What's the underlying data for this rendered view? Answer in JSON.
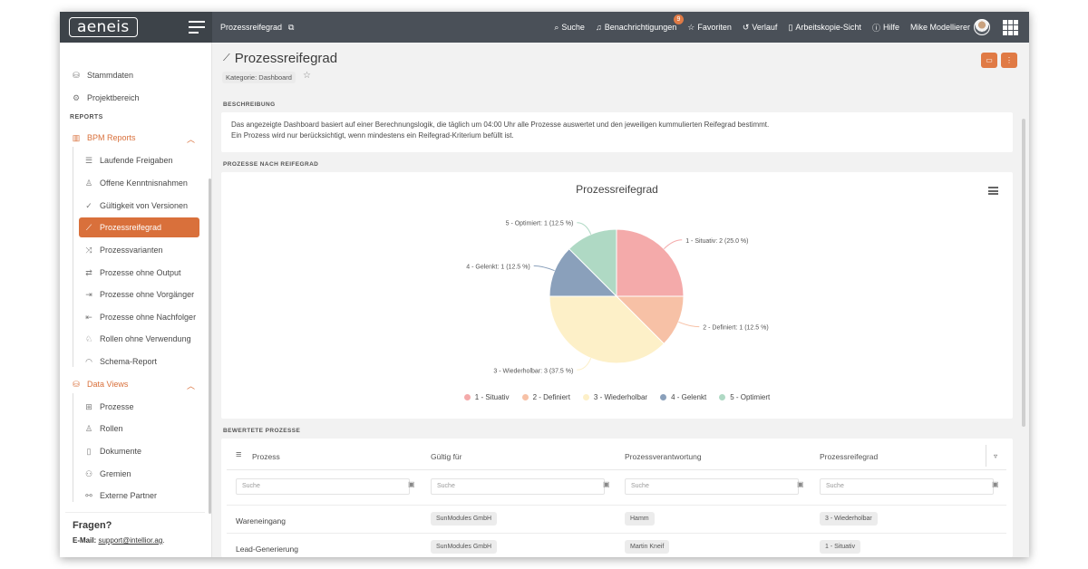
{
  "app": {
    "logo": "aeneis",
    "breadcrumb": "Prozessreifegrad"
  },
  "toolbar": {
    "search": "Suche",
    "notifications": "Benachrichtigungen",
    "notifications_badge": "9",
    "favorites": "Favoriten",
    "history": "Verlauf",
    "workcopy": "Arbeitskopie-Sicht",
    "help": "Hilfe",
    "user": "Mike Modellierer"
  },
  "sidebar": {
    "top_items": [
      {
        "label": "Stammdaten",
        "icon": "database-icon"
      },
      {
        "label": "Projektbereich",
        "icon": "project-icon"
      }
    ],
    "reports_label": "REPORTS",
    "bpm_group": "BPM Reports",
    "bpm_items": [
      {
        "label": "Laufende Freigaben"
      },
      {
        "label": "Offene Kenntnisnahmen"
      },
      {
        "label": "Gültigkeit von Versionen"
      },
      {
        "label": "Prozessreifegrad"
      },
      {
        "label": "Prozessvarianten"
      },
      {
        "label": "Prozesse ohne Output"
      },
      {
        "label": "Prozesse ohne Vorgänger"
      },
      {
        "label": "Prozesse ohne Nachfolger"
      },
      {
        "label": "Rollen ohne Verwendung"
      },
      {
        "label": "Schema-Report"
      }
    ],
    "data_group": "Data Views",
    "data_items": [
      {
        "label": "Prozesse"
      },
      {
        "label": "Rollen"
      },
      {
        "label": "Dokumente"
      },
      {
        "label": "Gremien"
      },
      {
        "label": "Externe Partner"
      }
    ],
    "help_title": "Fragen?",
    "help_mail_label": "E-Mail:",
    "help_mail": "support@intellior.ag",
    "help_mail_suffix": "."
  },
  "page": {
    "title": "Prozessreifegrad",
    "category": "Kategorie: Dashboard",
    "description_label": "BESCHREIBUNG",
    "description_line1": "Das angezeigte Dashboard basiert auf einer Berechnungslogik, die täglich um 04:00 Uhr alle Prozesse auswertet und den jeweiligen kummulierten Reifegrad bestimmt.",
    "description_line2": "Ein Prozess wird nur berücksichtigt, wenn mindestens ein Reifegrad-Kriterium befüllt ist.",
    "chart_section_label": "PROZESSE NACH REIFEGRAD",
    "table_section_label": "BEWERTETE PROZESSE"
  },
  "chart_data": {
    "type": "pie",
    "title": "Prozessreifegrad",
    "categories": [
      "1 - Situativ",
      "2 - Definiert",
      "3 - Wiederholbar",
      "4 - Gelenkt",
      "5 - Optimiert"
    ],
    "values": [
      2,
      1,
      3,
      1,
      1
    ],
    "percent_labels": [
      "1 - Situativ: 2 (25.0 %)",
      "2 - Definiert: 1 (12.5 %)",
      "3 - Wiederholbar: 3 (37.5 %)",
      "4 - Gelenkt: 1 (12.5 %)",
      "5 - Optimiert: 1 (12.5 %)"
    ],
    "colors": [
      "#f4aaaa",
      "#f7c1a6",
      "#fdf0c8",
      "#8aa0bb",
      "#afd9c4"
    ],
    "legend_position": "bottom"
  },
  "table": {
    "columns": [
      "Prozess",
      "Gültig für",
      "Prozessverantwortung",
      "Prozessreifegrad"
    ],
    "filter_placeholder": "Suche",
    "rows": [
      {
        "prozess": "Wareneingang",
        "gueltig": "SunModules GmbH",
        "verantwortung": "Hamm",
        "reifegrad": "3 - Wiederholbar"
      },
      {
        "prozess": "Lead-Generierung",
        "gueltig": "SunModules GmbH",
        "verantwortung": "Martin Kneif",
        "reifegrad": "1 - Situativ"
      }
    ]
  }
}
